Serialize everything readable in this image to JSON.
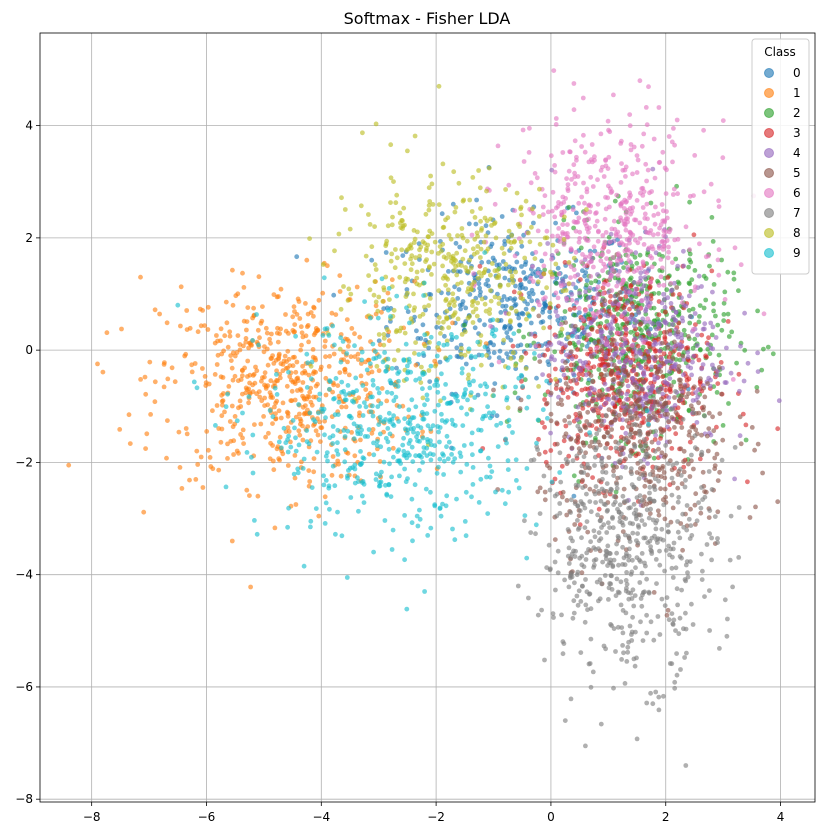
{
  "chart_data": {
    "type": "scatter",
    "title": "Softmax - Fisher LDA",
    "xlabel": "",
    "ylabel": "",
    "xlim": [
      -8.9,
      4.6
    ],
    "ylim": [
      -8.05,
      5.65
    ],
    "x_ticks": [
      -8,
      -6,
      -4,
      -2,
      0,
      2,
      4
    ],
    "y_ticks": [
      -8,
      -6,
      -4,
      -2,
      0,
      2,
      4
    ],
    "x_tick_labels": [
      "−8",
      "−6",
      "−4",
      "−2",
      "0",
      "2",
      "4"
    ],
    "y_tick_labels": [
      "−8",
      "−6",
      "−4",
      "−2",
      "0",
      "2",
      "4"
    ],
    "grid": true,
    "legend": {
      "title": "Class",
      "placement": "top-right"
    },
    "series": [
      {
        "name": "0",
        "color": "#1f77b4",
        "center": [
          -0.6,
          0.8
        ],
        "spread": [
          1.1,
          0.75
        ],
        "points": 400,
        "outliers": [
          [
            -1.7,
            2.6
          ],
          [
            0.4,
            -2.6
          ]
        ]
      },
      {
        "name": "1",
        "color": "#ff7f0e",
        "center": [
          -4.6,
          -0.6
        ],
        "spread": [
          1.1,
          0.9
        ],
        "points": 600,
        "outliers": [
          [
            -8.4,
            -2.05
          ],
          [
            -7.15,
            1.3
          ],
          [
            -7.35,
            -1.15
          ],
          [
            -5.55,
            -3.4
          ]
        ]
      },
      {
        "name": "2",
        "color": "#2ca02c",
        "center": [
          1.5,
          0.3
        ],
        "spread": [
          0.8,
          0.9
        ],
        "points": 520,
        "outliers": [
          [
            3.6,
            0.7
          ],
          [
            3.4,
            -1.6
          ]
        ]
      },
      {
        "name": "3",
        "color": "#d62728",
        "center": [
          1.3,
          -0.4
        ],
        "spread": [
          0.75,
          0.9
        ],
        "points": 520,
        "outliers": [
          [
            3.95,
            -1.4
          ]
        ]
      },
      {
        "name": "4",
        "color": "#9467bd",
        "center": [
          1.5,
          0.0
        ],
        "spread": [
          0.75,
          0.9
        ],
        "points": 450,
        "outliers": [
          [
            3.6,
            -0.05
          ]
        ]
      },
      {
        "name": "5",
        "color": "#8c564b",
        "center": [
          1.5,
          -1.6
        ],
        "spread": [
          0.85,
          1.0
        ],
        "points": 420,
        "outliers": [
          [
            3.95,
            -2.7
          ]
        ]
      },
      {
        "name": "6",
        "color": "#e377c2",
        "center": [
          1.0,
          2.2
        ],
        "spread": [
          0.85,
          0.9
        ],
        "points": 480,
        "outliers": [
          [
            0.05,
            4.98
          ],
          [
            1.55,
            4.8
          ],
          [
            0.4,
            4.75
          ],
          [
            2.2,
            4.1
          ]
        ]
      },
      {
        "name": "7",
        "color": "#7f7f7f",
        "center": [
          1.35,
          -3.4
        ],
        "spread": [
          0.75,
          1.2
        ],
        "points": 560,
        "outliers": [
          [
            2.35,
            -7.4
          ],
          [
            0.6,
            -7.05
          ],
          [
            0.25,
            -6.6
          ]
        ]
      },
      {
        "name": "8",
        "color": "#bcbd22",
        "center": [
          -1.8,
          1.3
        ],
        "spread": [
          1.0,
          0.9
        ],
        "points": 420,
        "outliers": [
          [
            -1.95,
            4.7
          ],
          [
            -2.5,
            3.55
          ]
        ]
      },
      {
        "name": "9",
        "color": "#17becf",
        "center": [
          -2.6,
          -1.4
        ],
        "spread": [
          1.2,
          0.95
        ],
        "points": 560,
        "outliers": [
          [
            -6.5,
            0.8
          ],
          [
            -2.2,
            -4.3
          ],
          [
            -4.3,
            -3.85
          ]
        ]
      }
    ]
  }
}
